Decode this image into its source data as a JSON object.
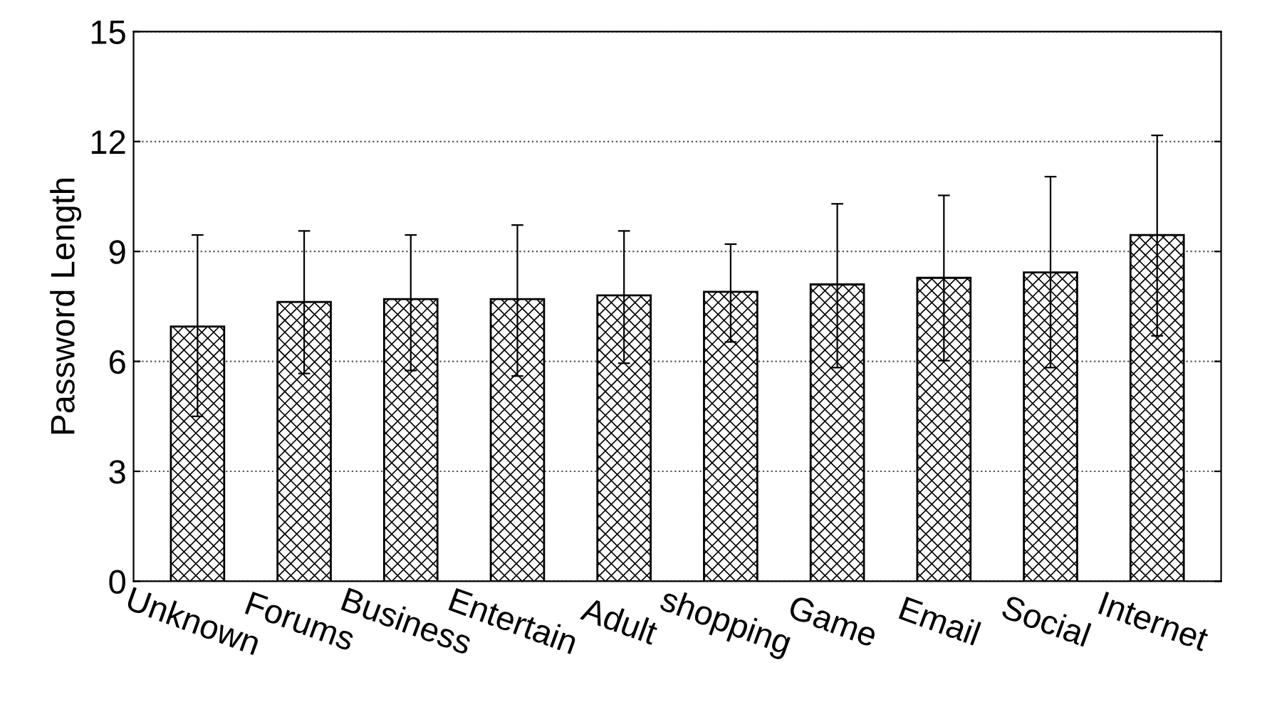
{
  "chart_data": {
    "type": "bar",
    "ylabel": "Password Length",
    "categories": [
      "Unknown",
      "Forums",
      "Business",
      "Entertain",
      "Adult",
      "shopping",
      "Game",
      "Email",
      "Social",
      "Internet"
    ],
    "values": [
      6.95,
      7.62,
      7.7,
      7.7,
      7.8,
      7.9,
      8.1,
      8.28,
      8.43,
      9.45
    ],
    "errors": [
      [
        4.5,
        9.45
      ],
      [
        5.67,
        9.56
      ],
      [
        5.75,
        9.45
      ],
      [
        5.6,
        9.72
      ],
      [
        5.95,
        9.56
      ],
      [
        6.53,
        9.2
      ],
      [
        5.83,
        10.3
      ],
      [
        6.02,
        10.53
      ],
      [
        5.83,
        11.04
      ],
      [
        6.7,
        12.17
      ]
    ],
    "color": "#000000",
    "ylim": [
      0,
      15
    ],
    "yticks": [
      0,
      3,
      6,
      9,
      12,
      15
    ],
    "grid": "y"
  }
}
